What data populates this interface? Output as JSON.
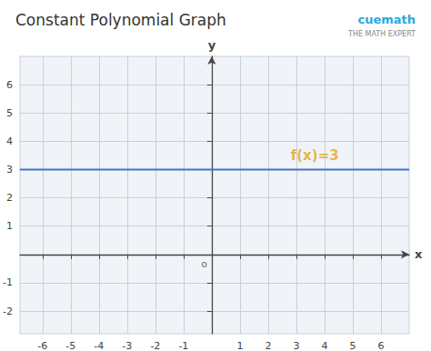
{
  "chart_data": {
    "type": "line",
    "title": "Constant Polynomial Graph",
    "x_label": "x",
    "y_label": "y",
    "x": [
      -6.8,
      7.0
    ],
    "values": [
      3,
      3
    ],
    "color": "#4472c4",
    "xlim": [
      -6.8,
      7.0
    ],
    "ylim": [
      -2.8,
      7.0
    ],
    "xticks": [
      -6,
      -5,
      -4,
      -3,
      -2,
      -1,
      1,
      2,
      3,
      4,
      5,
      6
    ],
    "yticks": [
      -2,
      -1,
      1,
      2,
      3,
      4,
      5,
      6
    ],
    "grid": true,
    "annotations": [
      {
        "text": "f(x)=3",
        "x": 2.8,
        "y": 3.25,
        "color": "#e8a020"
      },
      {
        "text": "o",
        "x": 0,
        "y": 0
      },
      {
        "text": "cuemath",
        "color": "#29a8e0"
      },
      {
        "text": "THE MATH EXPERT"
      }
    ]
  }
}
